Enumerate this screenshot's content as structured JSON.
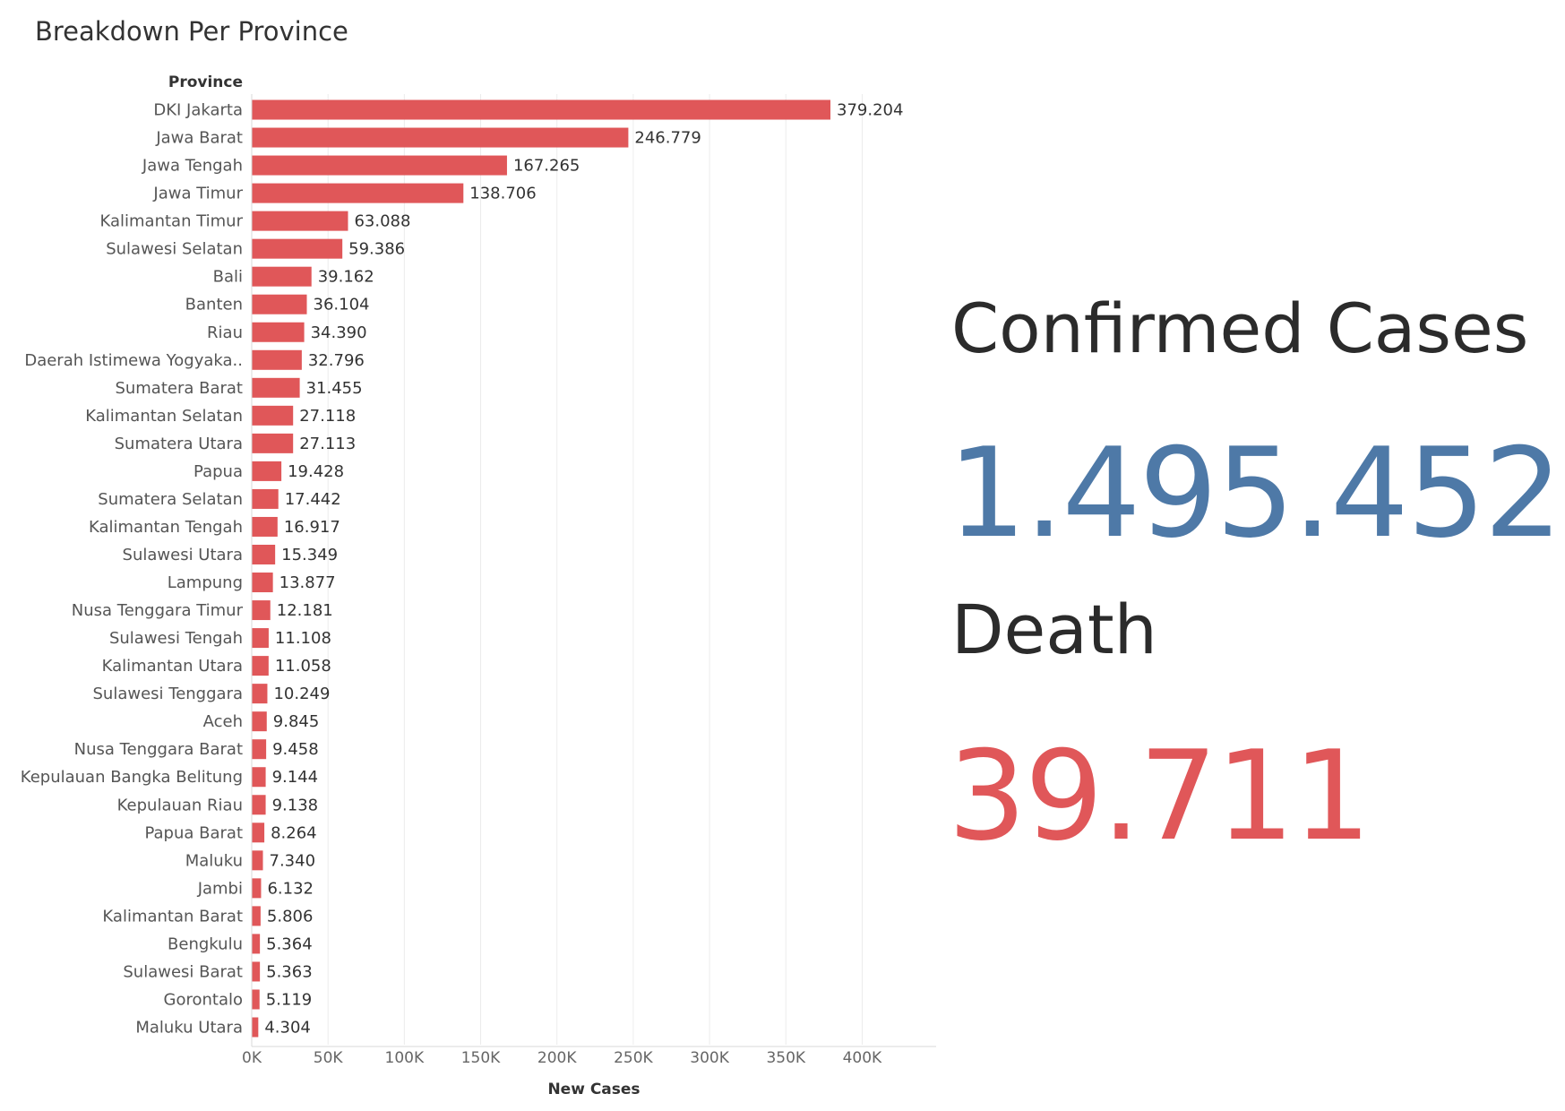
{
  "colors": {
    "bar": "#e05759",
    "confirmed": "#4e79a7",
    "death": "#e05759",
    "grid": "#ececec",
    "text": "#333333",
    "axis_text": "#666666"
  },
  "kpis": {
    "confirmed_label": "Confirmed Cases",
    "confirmed_value": "1.495.452",
    "death_label": "Death",
    "death_value": "39.711"
  },
  "chart_data": {
    "type": "bar",
    "orientation": "horizontal",
    "title": "Breakdown Per Province",
    "row_header": "Province",
    "xlabel": "New Cases",
    "xlim": [
      0,
      450000
    ],
    "xticks": [
      0,
      50000,
      100000,
      150000,
      200000,
      250000,
      300000,
      350000,
      400000
    ],
    "xtick_labels": [
      "0K",
      "50K",
      "100K",
      "150K",
      "200K",
      "250K",
      "300K",
      "350K",
      "400K"
    ],
    "grid": true,
    "categories": [
      "DKI Jakarta",
      "Jawa Barat",
      "Jawa Tengah",
      "Jawa Timur",
      "Kalimantan Timur",
      "Sulawesi Selatan",
      "Bali",
      "Banten",
      "Riau",
      "Daerah Istimewa Yogyaka..",
      "Sumatera Barat",
      "Kalimantan Selatan",
      "Sumatera Utara",
      "Papua",
      "Sumatera Selatan",
      "Kalimantan Tengah",
      "Sulawesi Utara",
      "Lampung",
      "Nusa Tenggara Timur",
      "Sulawesi Tengah",
      "Kalimantan Utara",
      "Sulawesi Tenggara",
      "Aceh",
      "Nusa Tenggara Barat",
      "Kepulauan Bangka Belitung",
      "Kepulauan Riau",
      "Papua Barat",
      "Maluku",
      "Jambi",
      "Kalimantan Barat",
      "Bengkulu",
      "Sulawesi Barat",
      "Gorontalo",
      "Maluku Utara"
    ],
    "values": [
      379204,
      246779,
      167265,
      138706,
      63088,
      59386,
      39162,
      36104,
      34390,
      32796,
      31455,
      27118,
      27113,
      19428,
      17442,
      16917,
      15349,
      13877,
      12181,
      11108,
      11058,
      10249,
      9845,
      9458,
      9144,
      9138,
      8264,
      7340,
      6132,
      5806,
      5364,
      5363,
      5119,
      4304
    ],
    "value_labels": [
      "379.204",
      "246.779",
      "167.265",
      "138.706",
      "63.088",
      "59.386",
      "39.162",
      "36.104",
      "34.390",
      "32.796",
      "31.455",
      "27.118",
      "27.113",
      "19.428",
      "17.442",
      "16.917",
      "15.349",
      "13.877",
      "12.181",
      "11.108",
      "11.058",
      "10.249",
      "9.845",
      "9.458",
      "9.144",
      "9.138",
      "8.264",
      "7.340",
      "6.132",
      "5.806",
      "5.364",
      "5.363",
      "5.119",
      "4.304"
    ]
  }
}
